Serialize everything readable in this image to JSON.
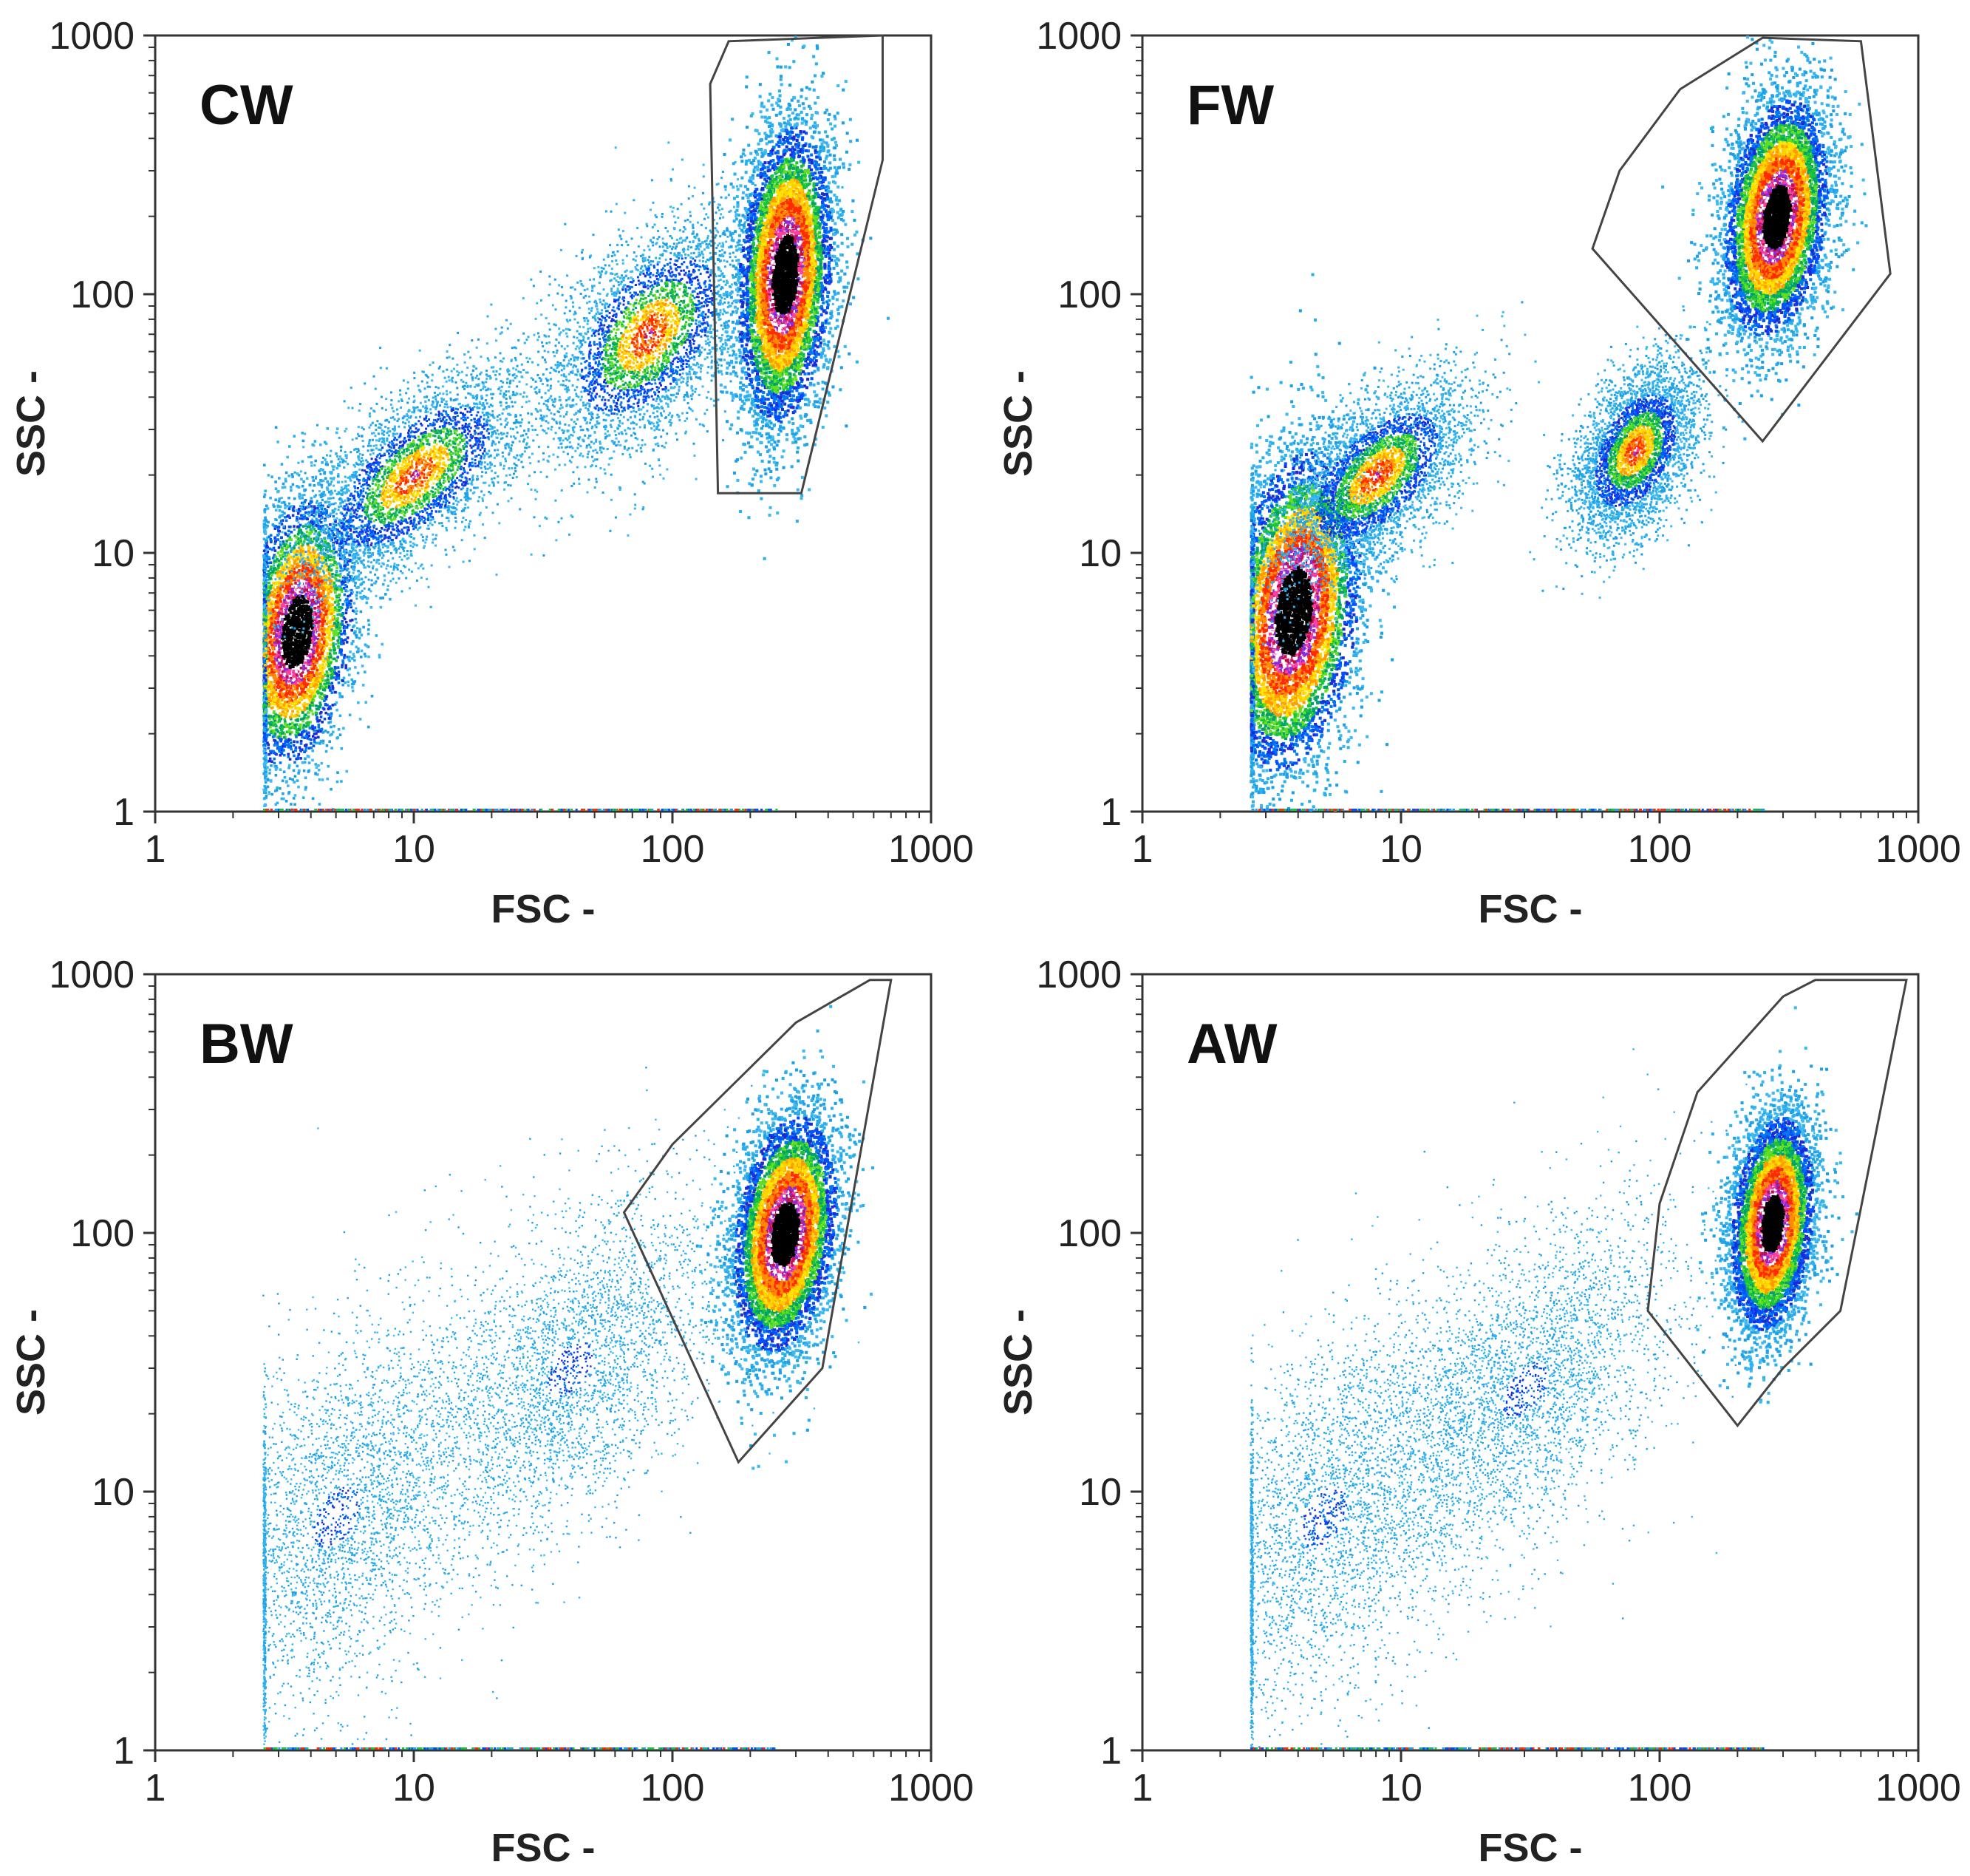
{
  "chart_data": [
    {
      "type": "scatter",
      "title": "CW",
      "xlabel": "FSC -",
      "ylabel": "SSC -",
      "xscale": "log",
      "yscale": "log",
      "xlim": [
        1,
        1000
      ],
      "ylim": [
        1,
        1000
      ],
      "x_ticks": [
        "1",
        "10",
        "100",
        "1000"
      ],
      "y_ticks": [
        "1",
        "10",
        "100",
        "1000"
      ],
      "gate": [
        [
          140,
          650
        ],
        [
          165,
          950
        ],
        [
          650,
          1000
        ],
        [
          650,
          330
        ],
        [
          315,
          17
        ],
        [
          150,
          17
        ]
      ],
      "populations": [
        {
          "fsc": 3.5,
          "ssc": 5,
          "spread_fsc": 0.11,
          "spread_ssc": 0.25,
          "density": "high"
        },
        {
          "fsc": 10,
          "ssc": 20,
          "spread_fsc": 0.22,
          "spread_ssc": 0.16,
          "density": "medium"
        },
        {
          "fsc": 80,
          "ssc": 70,
          "spread_fsc": 0.2,
          "spread_ssc": 0.2,
          "density": "medium"
        },
        {
          "fsc": 270,
          "ssc": 120,
          "spread_fsc": 0.09,
          "spread_ssc": 0.28,
          "density": "very high"
        }
      ]
    },
    {
      "type": "scatter",
      "title": "FW",
      "xlabel": "FSC -",
      "ylabel": "SSC -",
      "xscale": "log",
      "yscale": "log",
      "xlim": [
        1,
        1000
      ],
      "ylim": [
        1,
        1000
      ],
      "x_ticks": [
        "1",
        "10",
        "100",
        "1000"
      ],
      "y_ticks": [
        "1",
        "10",
        "100",
        "1000"
      ],
      "gate": [
        [
          55,
          150
        ],
        [
          70,
          300
        ],
        [
          120,
          620
        ],
        [
          250,
          980
        ],
        [
          600,
          950
        ],
        [
          780,
          120
        ],
        [
          250,
          27
        ]
      ],
      "populations": [
        {
          "fsc": 3.8,
          "ssc": 6,
          "spread_fsc": 0.13,
          "spread_ssc": 0.3,
          "density": "very high"
        },
        {
          "fsc": 8,
          "ssc": 20,
          "spread_fsc": 0.18,
          "spread_ssc": 0.15,
          "density": "medium"
        },
        {
          "fsc": 80,
          "ssc": 25,
          "spread_fsc": 0.12,
          "spread_ssc": 0.15,
          "density": "medium"
        },
        {
          "fsc": 280,
          "ssc": 200,
          "spread_fsc": 0.1,
          "spread_ssc": 0.22,
          "density": "very high"
        }
      ]
    },
    {
      "type": "scatter",
      "title": "BW",
      "xlabel": "FSC -",
      "ylabel": "SSC -",
      "xscale": "log",
      "yscale": "log",
      "xlim": [
        1,
        1000
      ],
      "ylim": [
        1,
        1000
      ],
      "x_ticks": [
        "1",
        "10",
        "100",
        "1000"
      ],
      "y_ticks": [
        "1",
        "10",
        "100",
        "1000"
      ],
      "gate": [
        [
          65,
          120
        ],
        [
          100,
          220
        ],
        [
          300,
          650
        ],
        [
          580,
          950
        ],
        [
          700,
          950
        ],
        [
          380,
          30
        ],
        [
          180,
          13
        ]
      ],
      "populations": [
        {
          "fsc": 5,
          "ssc": 8,
          "spread_fsc": 0.3,
          "spread_ssc": 0.35,
          "density": "low"
        },
        {
          "fsc": 40,
          "ssc": 30,
          "spread_fsc": 0.3,
          "spread_ssc": 0.3,
          "density": "low"
        },
        {
          "fsc": 270,
          "ssc": 100,
          "spread_fsc": 0.1,
          "spread_ssc": 0.22,
          "density": "very high"
        }
      ]
    },
    {
      "type": "scatter",
      "title": "AW",
      "xlabel": "FSC -",
      "ylabel": "SSC -",
      "xscale": "log",
      "yscale": "log",
      "xlim": [
        1,
        1000
      ],
      "ylim": [
        1,
        1000
      ],
      "x_ticks": [
        "1",
        "10",
        "100",
        "1000"
      ],
      "y_ticks": [
        "1",
        "10",
        "100",
        "1000"
      ],
      "gate": [
        [
          90,
          50
        ],
        [
          100,
          130
        ],
        [
          140,
          350
        ],
        [
          300,
          820
        ],
        [
          400,
          950
        ],
        [
          900,
          950
        ],
        [
          500,
          50
        ],
        [
          300,
          30
        ],
        [
          200,
          18
        ]
      ],
      "populations": [
        {
          "fsc": 5,
          "ssc": 8,
          "spread_fsc": 0.3,
          "spread_ssc": 0.35,
          "density": "low"
        },
        {
          "fsc": 30,
          "ssc": 25,
          "spread_fsc": 0.3,
          "spread_ssc": 0.3,
          "density": "low"
        },
        {
          "fsc": 270,
          "ssc": 110,
          "spread_fsc": 0.08,
          "spread_ssc": 0.2,
          "density": "very high"
        }
      ]
    }
  ]
}
